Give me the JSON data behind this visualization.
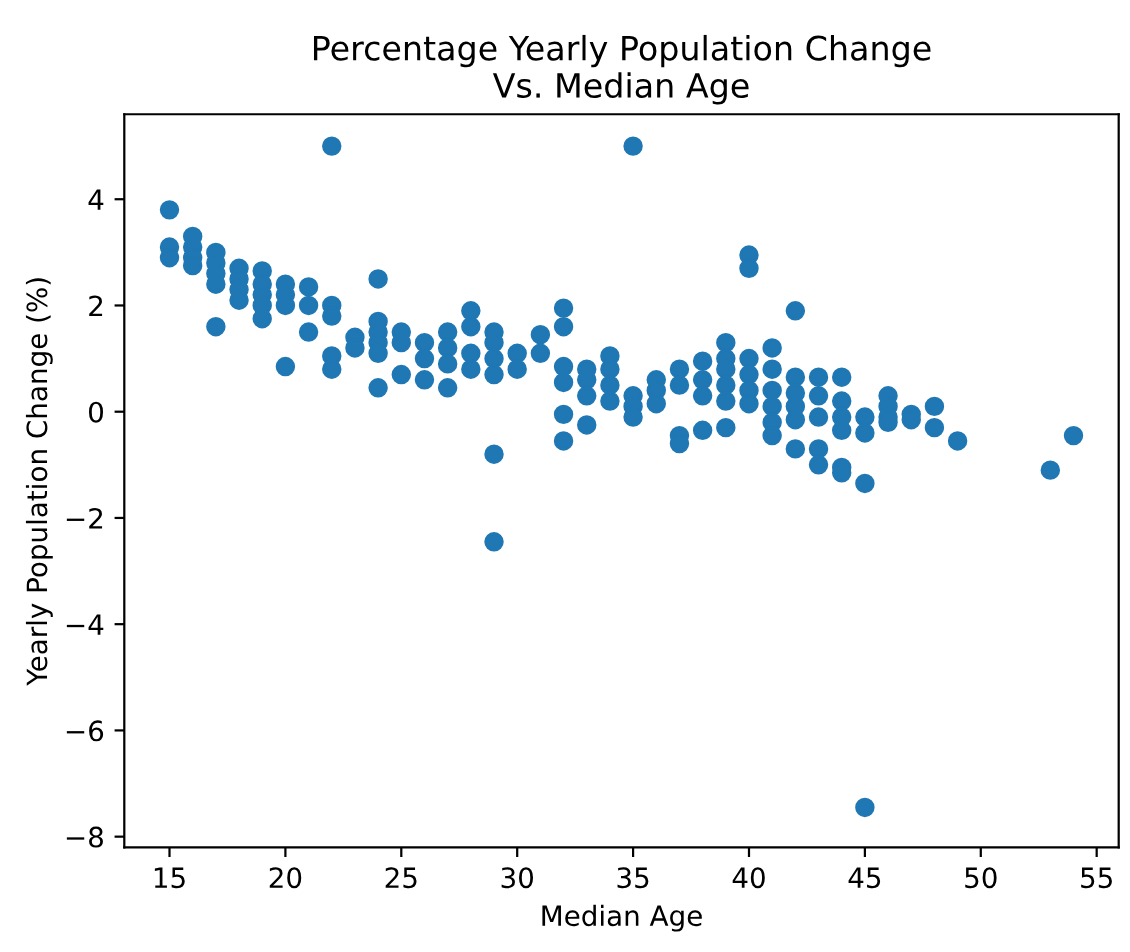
{
  "chart_data": {
    "type": "scatter",
    "title": "Percentage Yearly Population Change\nVs. Median Age",
    "xlabel": "Median Age",
    "ylabel": "Yearly Population Change (%)",
    "x": [
      15,
      15,
      15,
      16,
      16,
      16,
      16,
      17,
      17,
      17,
      17,
      17,
      18,
      18,
      18,
      18,
      19,
      19,
      19,
      19,
      19,
      20,
      20,
      20,
      20,
      21,
      21,
      21,
      22,
      22,
      22,
      22,
      22,
      23,
      23,
      24,
      24,
      24,
      24,
      24,
      24,
      25,
      25,
      25,
      26,
      26,
      26,
      27,
      27,
      27,
      27,
      28,
      28,
      28,
      28,
      29,
      29,
      29,
      29,
      29,
      29,
      30,
      30,
      31,
      31,
      32,
      32,
      32,
      32,
      32,
      32,
      33,
      33,
      33,
      33,
      34,
      34,
      34,
      34,
      35,
      35,
      35,
      35,
      36,
      36,
      36,
      37,
      37,
      37,
      37,
      38,
      38,
      38,
      38,
      39,
      39,
      39,
      39,
      39,
      39,
      40,
      40,
      40,
      40,
      40,
      40,
      41,
      41,
      41,
      41,
      41,
      41,
      42,
      42,
      42,
      42,
      42,
      42,
      43,
      43,
      43,
      43,
      43,
      44,
      44,
      44,
      44,
      44,
      44,
      45,
      45,
      45,
      45,
      46,
      46,
      46,
      46,
      47,
      47,
      48,
      48,
      49,
      53,
      54
    ],
    "values": [
      3.8,
      3.1,
      2.9,
      3.3,
      3.1,
      2.9,
      2.75,
      3.0,
      2.8,
      2.6,
      2.4,
      1.6,
      2.7,
      2.5,
      2.3,
      2.1,
      2.65,
      2.4,
      2.2,
      2.0,
      1.75,
      2.4,
      2.2,
      2.0,
      0.85,
      2.35,
      2.0,
      1.5,
      5.0,
      2.0,
      1.8,
      1.05,
      0.8,
      1.4,
      1.2,
      2.5,
      1.7,
      1.5,
      1.3,
      1.1,
      0.45,
      1.5,
      1.3,
      0.7,
      1.3,
      1.0,
      0.6,
      1.5,
      1.2,
      0.9,
      0.45,
      1.9,
      1.6,
      1.1,
      0.8,
      1.5,
      1.3,
      1.0,
      0.7,
      -0.8,
      -2.45,
      1.1,
      0.8,
      1.45,
      1.1,
      1.95,
      1.6,
      0.85,
      0.55,
      -0.05,
      -0.55,
      0.8,
      0.6,
      0.3,
      -0.25,
      1.05,
      0.8,
      0.5,
      0.2,
      5.0,
      0.3,
      0.1,
      -0.1,
      0.6,
      0.4,
      0.15,
      0.8,
      0.5,
      -0.45,
      -0.6,
      0.95,
      0.6,
      0.3,
      -0.35,
      1.3,
      1.0,
      0.8,
      0.5,
      0.2,
      -0.3,
      2.95,
      2.7,
      1.0,
      0.7,
      0.4,
      0.15,
      1.2,
      0.8,
      0.4,
      0.1,
      -0.2,
      -0.45,
      1.9,
      0.65,
      0.35,
      0.1,
      -0.15,
      -0.7,
      0.65,
      0.3,
      -0.1,
      -0.7,
      -1.0,
      0.65,
      0.2,
      -0.1,
      -0.35,
      -1.05,
      -1.15,
      -0.1,
      -0.4,
      -1.35,
      -7.45,
      0.3,
      0.1,
      -0.1,
      -0.2,
      -0.05,
      -0.15,
      0.1,
      -0.3,
      -0.55,
      -1.1,
      -0.45
    ],
    "color": "#1f77b4",
    "marker": "circle",
    "xlim": [
      13.05,
      55.95
    ],
    "xticks": [
      15,
      20,
      25,
      30,
      35,
      40,
      45,
      50,
      55
    ],
    "ylim": [
      -8.2,
      5.6
    ],
    "yticks": [
      {
        "value": -8,
        "label": "−8"
      },
      {
        "value": -6,
        "label": "−6"
      },
      {
        "value": -4,
        "label": "−4"
      },
      {
        "value": -2,
        "label": "−2"
      },
      0,
      2,
      4
    ],
    "grid": false
  }
}
